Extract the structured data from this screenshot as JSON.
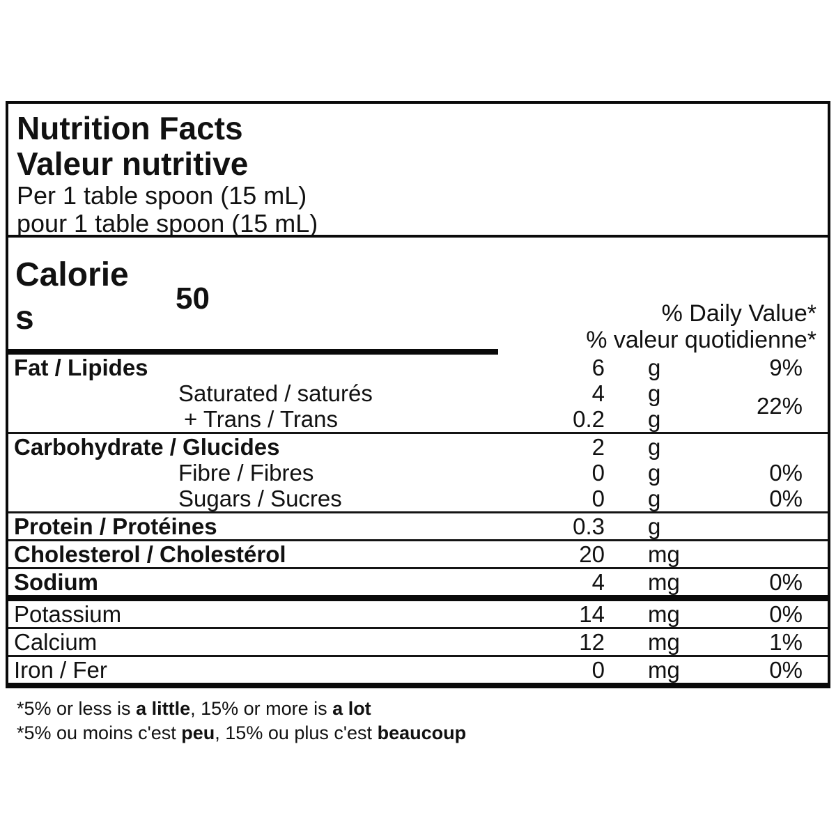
{
  "label": {
    "title_en": "Nutrition Facts",
    "title_fr": "Valeur nutritive",
    "serving_en": "Per 1 table spoon (15 mL)",
    "serving_fr": "pour 1 table spoon (15 mL)",
    "calories": {
      "word": "Calories",
      "value": "50"
    },
    "dv_header_en": "% Daily Value*",
    "dv_header_fr": "% valeur quotidienne*",
    "rows": {
      "fat": {
        "name": "Fat / Lipides",
        "amount": "6",
        "unit": "g",
        "dv": "9%"
      },
      "saturated": {
        "name": "Saturated / saturés",
        "amount": "4",
        "unit": "g"
      },
      "trans": {
        "name": "+ Trans / Trans",
        "amount": "0.2",
        "unit": "g"
      },
      "sat_trans_dv": "22%",
      "carbohydrate": {
        "name": "Carbohydrate / Glucides",
        "amount": "2",
        "unit": "g",
        "dv": ""
      },
      "fibre": {
        "name": "Fibre / Fibres",
        "amount": "0",
        "unit": "g",
        "dv": "0%"
      },
      "sugars": {
        "name": "Sugars / Sucres",
        "amount": "0",
        "unit": "g",
        "dv": "0%"
      },
      "protein": {
        "name": "Protein / Protéines",
        "amount": "0.3",
        "unit": "g",
        "dv": ""
      },
      "cholesterol": {
        "name": "Cholesterol / Cholestérol",
        "amount": "20",
        "unit": "mg",
        "dv": ""
      },
      "sodium": {
        "name": "Sodium",
        "amount": "4",
        "unit": "mg",
        "dv": "0%"
      },
      "potassium": {
        "name": "Potassium",
        "amount": "14",
        "unit": "mg",
        "dv": "0%"
      },
      "calcium": {
        "name": "Calcium",
        "amount": "12",
        "unit": "mg",
        "dv": "1%"
      },
      "iron": {
        "name": "Iron / Fer",
        "amount": "0",
        "unit": "mg",
        "dv": "0%"
      }
    }
  },
  "footnote": {
    "en": {
      "part1": "*5% or less is ",
      "part2": "a little",
      "part3": ", 15% or more is ",
      "part4": "a lot"
    },
    "fr": {
      "part1": "*5% ou moins c'est ",
      "part2": "peu",
      "part3": ", 15% ou plus c'est ",
      "part4": "beaucoup"
    }
  },
  "colors": {
    "ink": "#111111",
    "background": "#ffffff"
  }
}
